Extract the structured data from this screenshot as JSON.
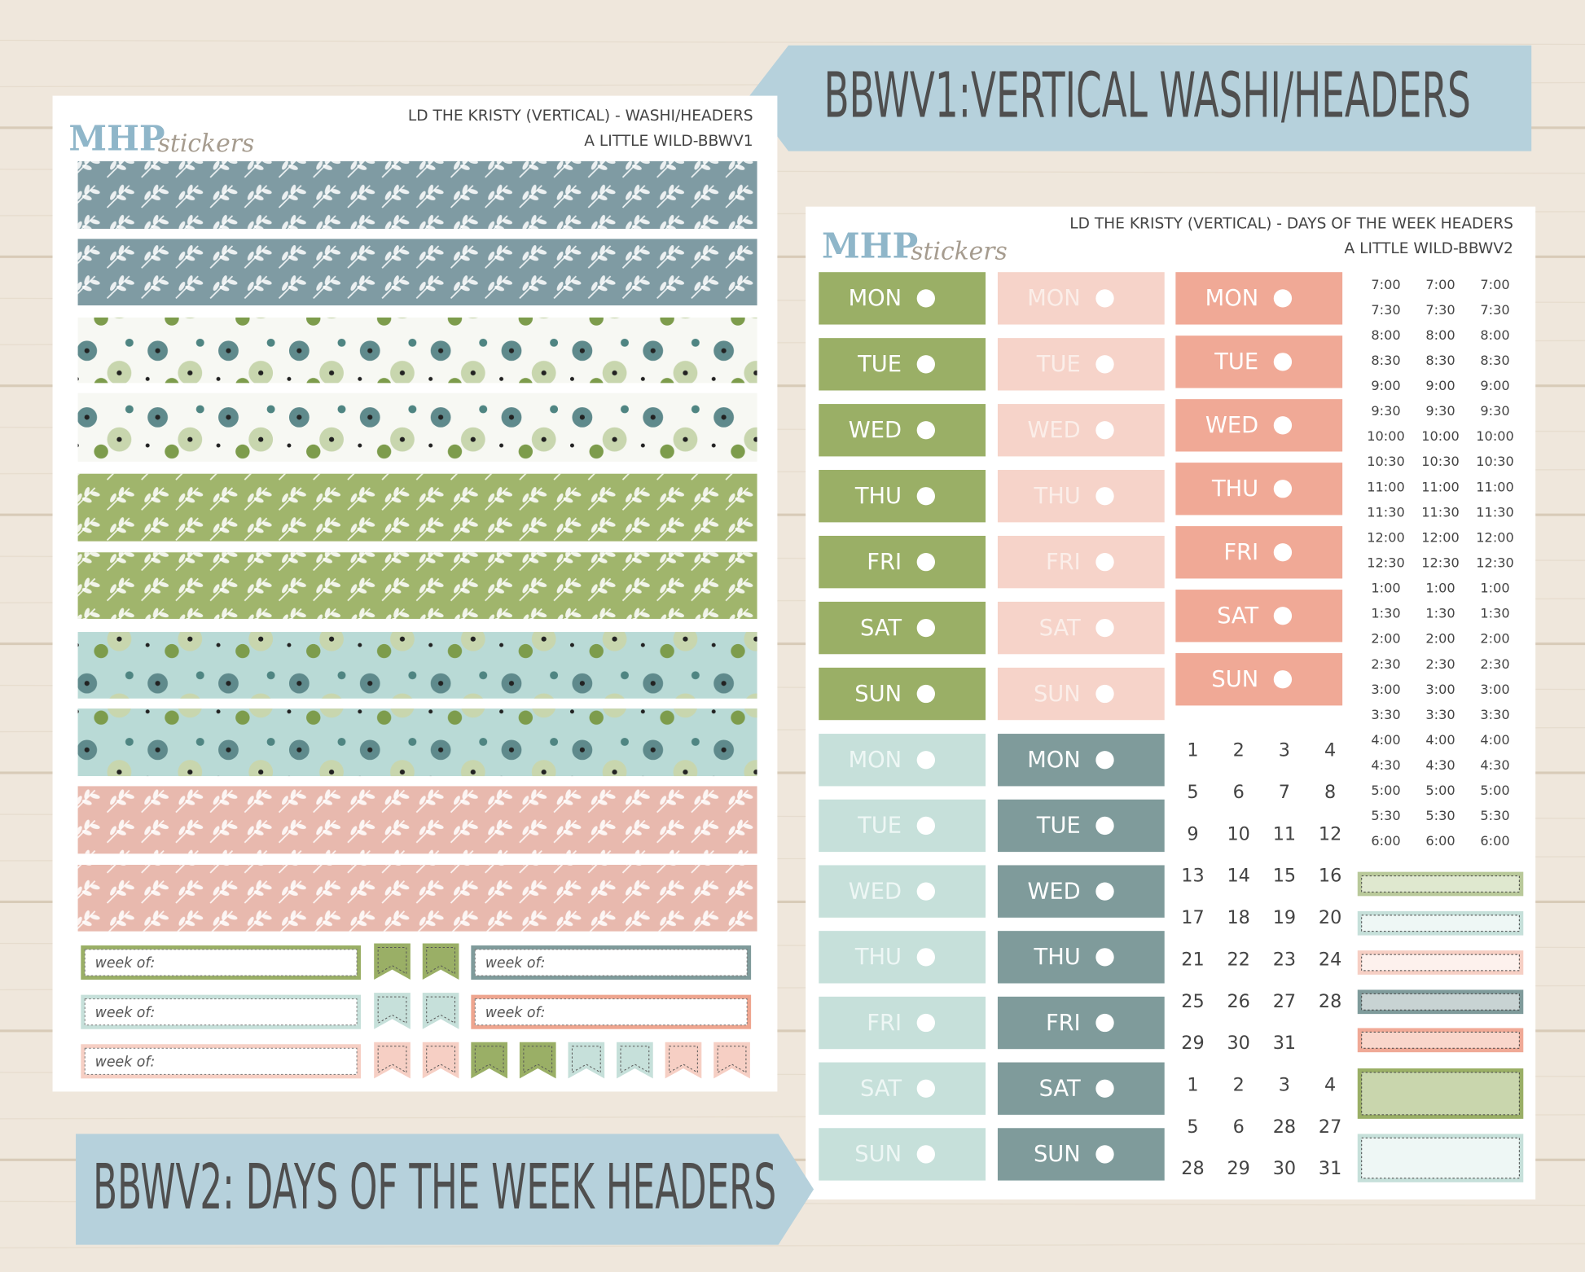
{
  "banners": {
    "top": "BBWV1:VERTICAL WASHI/HEADERS",
    "bottom": "BBWV2: DAYS OF THE WEEK HEADERS"
  },
  "brand": {
    "name": "MHP",
    "tagline": "stickers"
  },
  "sheet1": {
    "title": "LD THE KRISTY (VERTICAL) - WASHI/HEADERS",
    "subtitle": "A LITTLE WILD-BBWV1",
    "week_label": "week of:"
  },
  "sheet2": {
    "title": "LD THE KRISTY (VERTICAL) - DAYS OF THE WEEK HEADERS",
    "subtitle": "A LITTLE WILD-BBWV2",
    "days": [
      "MON",
      "TUE",
      "WED",
      "THU",
      "FRI",
      "SAT",
      "SUN"
    ],
    "times": [
      "7:00",
      "7:30",
      "8:00",
      "8:30",
      "9:00",
      "9:30",
      "10:00",
      "10:30",
      "11:00",
      "11:30",
      "12:00",
      "12:30",
      "1:00",
      "1:30",
      "2:00",
      "2:30",
      "3:00",
      "3:30",
      "4:00",
      "4:30",
      "5:00",
      "5:30",
      "6:00"
    ],
    "dates": [
      [
        "1",
        "2",
        "3",
        "4"
      ],
      [
        "5",
        "6",
        "7",
        "8"
      ],
      [
        "9",
        "10",
        "11",
        "12"
      ],
      [
        "13",
        "14",
        "15",
        "16"
      ],
      [
        "17",
        "18",
        "19",
        "20"
      ],
      [
        "21",
        "22",
        "23",
        "24"
      ],
      [
        "25",
        "26",
        "27",
        "28"
      ],
      [
        "29",
        "30",
        "31"
      ],
      [
        "1",
        "2",
        "3",
        "4"
      ],
      [
        "5",
        "6",
        "28",
        "27"
      ],
      [
        "28",
        "29",
        "30",
        "31"
      ]
    ]
  }
}
